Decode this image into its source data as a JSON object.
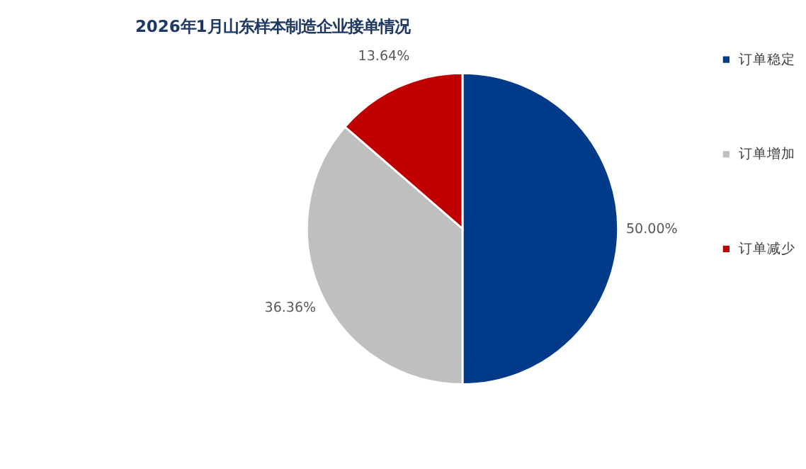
{
  "chart_data": {
    "type": "pie",
    "title": "2026年1月山东样本制造企业接单情况",
    "categories": [
      "订单稳定",
      "订单增加",
      "订单减少"
    ],
    "values": [
      50.0,
      36.36,
      13.64
    ],
    "colors": [
      "#003a88",
      "#bfbfbf",
      "#c00000"
    ],
    "value_labels": [
      "50.00%",
      "36.36%",
      "13.64%"
    ],
    "legend": "right"
  }
}
